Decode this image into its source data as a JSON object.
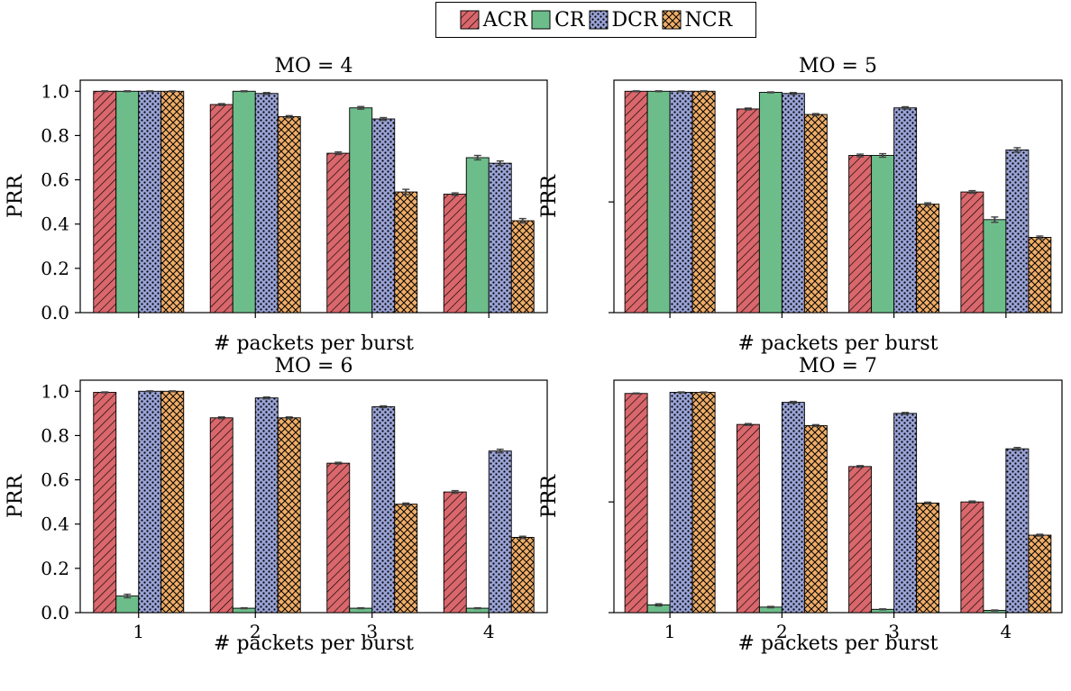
{
  "colors": {
    "ACR": "#d9676c",
    "CR": "#6dbd8a",
    "DCR": "#9aa3d6",
    "NCR": "#f0ad68"
  },
  "legend": {
    "placement": "top-center",
    "entries": [
      "ACR",
      "CR",
      "DCR",
      "NCR"
    ]
  },
  "chart_data": [
    {
      "type": "bar",
      "title": "MO = 4",
      "xlabel": "# packets per burst",
      "ylabel": "PRR",
      "categories": [
        "1",
        "2",
        "3",
        "4"
      ],
      "ylim": [
        0,
        1.05
      ],
      "yticks": [
        "0.0",
        "0.2",
        "0.4",
        "0.6",
        "0.8",
        "1.0"
      ],
      "show_xticks": false,
      "show_yticks": true,
      "series": [
        {
          "name": "ACR",
          "values": [
            1.0,
            0.94,
            0.72,
            0.535
          ],
          "errors": [
            0.002,
            0.004,
            0.006,
            0.006
          ]
        },
        {
          "name": "CR",
          "values": [
            1.0,
            1.0,
            0.925,
            0.7
          ],
          "errors": [
            0.002,
            0.002,
            0.006,
            0.01
          ]
        },
        {
          "name": "DCR",
          "values": [
            1.0,
            0.99,
            0.875,
            0.675
          ],
          "errors": [
            0.002,
            0.004,
            0.006,
            0.01
          ]
        },
        {
          "name": "NCR",
          "values": [
            1.0,
            0.885,
            0.545,
            0.415
          ],
          "errors": [
            0.002,
            0.005,
            0.012,
            0.01
          ]
        }
      ]
    },
    {
      "type": "bar",
      "title": "MO = 5",
      "xlabel": "# packets per burst",
      "ylabel": "PRR",
      "categories": [
        "1",
        "2",
        "3",
        "4"
      ],
      "ylim": [
        0,
        1.05
      ],
      "yticks": [
        "",
        ""
      ],
      "show_xticks": false,
      "show_yticks": false,
      "series": [
        {
          "name": "ACR",
          "values": [
            1.0,
            0.92,
            0.71,
            0.545
          ],
          "errors": [
            0.002,
            0.004,
            0.006,
            0.006
          ]
        },
        {
          "name": "CR",
          "values": [
            1.0,
            0.995,
            0.71,
            0.42
          ],
          "errors": [
            0.002,
            0.002,
            0.008,
            0.012
          ]
        },
        {
          "name": "DCR",
          "values": [
            1.0,
            0.99,
            0.925,
            0.735
          ],
          "errors": [
            0.002,
            0.004,
            0.005,
            0.01
          ]
        },
        {
          "name": "NCR",
          "values": [
            1.0,
            0.895,
            0.49,
            0.34
          ],
          "errors": [
            0.002,
            0.004,
            0.006,
            0.006
          ]
        }
      ]
    },
    {
      "type": "bar",
      "title": "MO = 6",
      "xlabel": "# packets per burst",
      "ylabel": "PRR",
      "categories": [
        "1",
        "2",
        "3",
        "4"
      ],
      "ylim": [
        0,
        1.05
      ],
      "yticks": [
        "0.0",
        "0.2",
        "0.4",
        "0.6",
        "0.8",
        "1.0"
      ],
      "show_xticks": true,
      "show_yticks": true,
      "series": [
        {
          "name": "ACR",
          "values": [
            0.995,
            0.88,
            0.675,
            0.545
          ],
          "errors": [
            0.002,
            0.004,
            0.004,
            0.006
          ]
        },
        {
          "name": "CR",
          "values": [
            0.075,
            0.02,
            0.02,
            0.02
          ],
          "errors": [
            0.008,
            0.002,
            0.002,
            0.002
          ]
        },
        {
          "name": "DCR",
          "values": [
            1.0,
            0.97,
            0.93,
            0.73
          ],
          "errors": [
            0.002,
            0.004,
            0.004,
            0.008
          ]
        },
        {
          "name": "NCR",
          "values": [
            1.0,
            0.88,
            0.49,
            0.34
          ],
          "errors": [
            0.002,
            0.004,
            0.005,
            0.005
          ]
        }
      ]
    },
    {
      "type": "bar",
      "title": "MO = 7",
      "xlabel": "# packets per burst",
      "ylabel": "PRR",
      "categories": [
        "1",
        "2",
        "3",
        "4"
      ],
      "ylim": [
        0,
        1.05
      ],
      "yticks": [
        "",
        ""
      ],
      "show_xticks": true,
      "show_yticks": false,
      "series": [
        {
          "name": "ACR",
          "values": [
            0.99,
            0.85,
            0.66,
            0.5
          ],
          "errors": [
            0.002,
            0.004,
            0.004,
            0.004
          ]
        },
        {
          "name": "CR",
          "values": [
            0.035,
            0.025,
            0.015,
            0.01
          ],
          "errors": [
            0.005,
            0.003,
            0.002,
            0.002
          ]
        },
        {
          "name": "DCR",
          "values": [
            0.995,
            0.95,
            0.9,
            0.74
          ],
          "errors": [
            0.002,
            0.004,
            0.004,
            0.006
          ]
        },
        {
          "name": "NCR",
          "values": [
            0.995,
            0.845,
            0.495,
            0.35
          ],
          "errors": [
            0.002,
            0.004,
            0.004,
            0.004
          ]
        }
      ]
    }
  ]
}
